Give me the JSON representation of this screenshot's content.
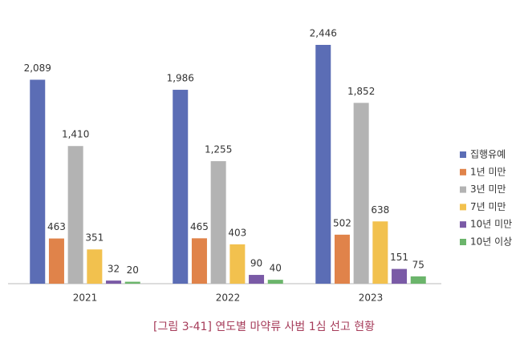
{
  "chart_data": {
    "type": "bar",
    "title": "[그림 3-41] 연도별 마약류 사범 1심 선고 현황",
    "categories": [
      "2021",
      "2022",
      "2023"
    ],
    "series": [
      {
        "name": "집행유예",
        "color": "#5b6db5",
        "values": [
          2089,
          1986,
          2446
        ],
        "value_labels": [
          "2,089",
          "1,986",
          "2,446"
        ]
      },
      {
        "name": "1년 미만",
        "color": "#e0834a",
        "values": [
          463,
          465,
          502
        ]
      },
      {
        "name": "3년 미만",
        "color": "#b3b3b3",
        "values": [
          1410,
          1255,
          1852
        ],
        "value_labels": [
          "1,410",
          "1,255",
          "1,852"
        ]
      },
      {
        "name": "7년 미만",
        "color": "#f2c14e",
        "values": [
          351,
          403,
          638
        ]
      },
      {
        "name": "10년 미만",
        "color": "#7a5aa6",
        "values": [
          32,
          90,
          151
        ]
      },
      {
        "name": "10년 이상",
        "color": "#6bb56b",
        "values": [
          20,
          40,
          75
        ]
      }
    ],
    "legend": "right"
  }
}
